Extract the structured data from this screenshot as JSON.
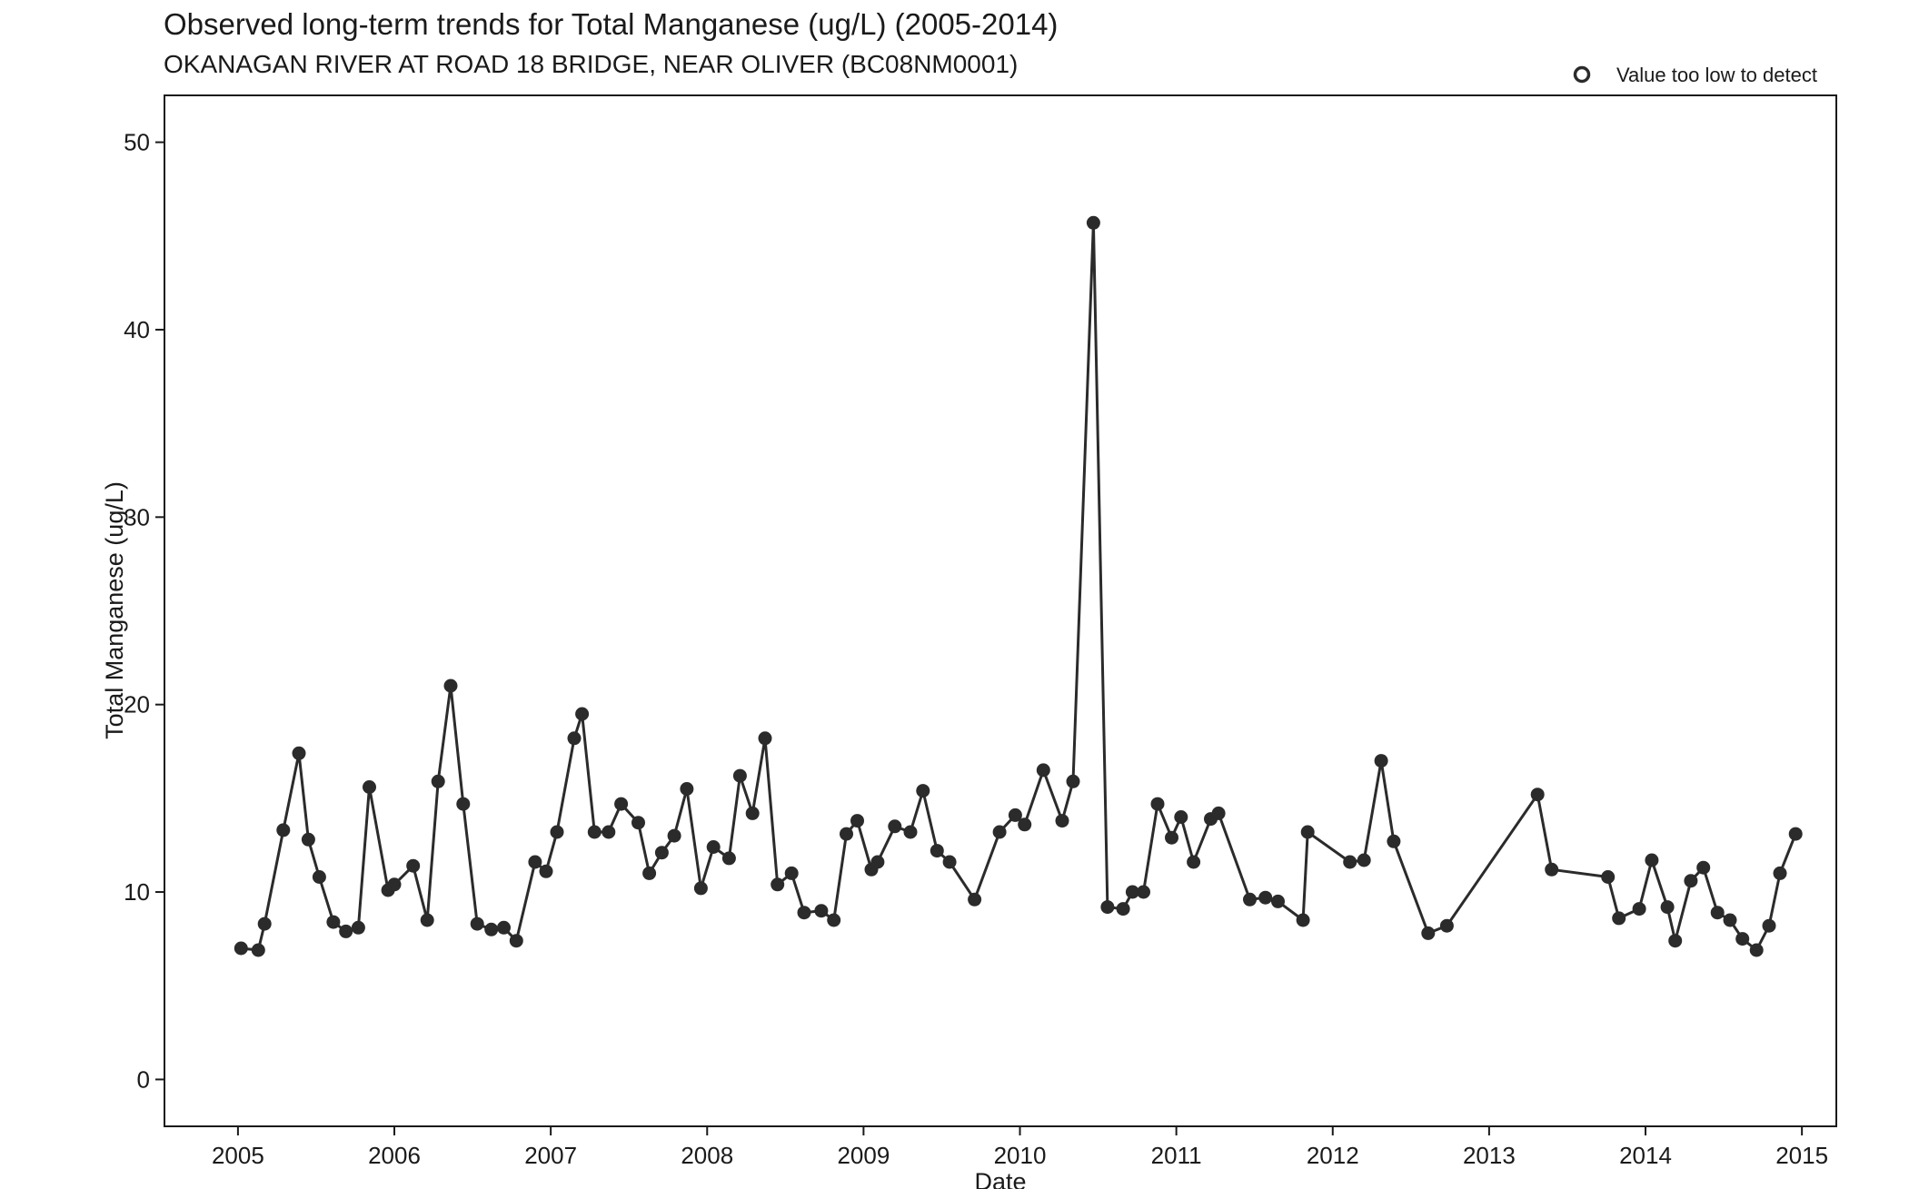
{
  "chart_data": {
    "type": "line",
    "title": "Observed long-term trends for Total Manganese (ug/L) (2005-2014)",
    "subtitle": "OKANAGAN RIVER AT ROAD 18 BRIDGE, NEAR OLIVER (BC08NM0001)",
    "xlabel": "Date",
    "ylabel": "Total Manganese (ug/L)",
    "xlim": [
      2004.53,
      2015.22
    ],
    "ylim": [
      -2.5,
      52.5
    ],
    "x_ticks": [
      2005,
      2006,
      2007,
      2008,
      2009,
      2010,
      2011,
      2012,
      2013,
      2014,
      2015
    ],
    "x_tick_labels": [
      "2005",
      "2006",
      "2007",
      "2008",
      "2009",
      "2010",
      "2011",
      "2012",
      "2013",
      "2014",
      "2015"
    ],
    "y_ticks": [
      0,
      10,
      20,
      30,
      40,
      50
    ],
    "y_tick_labels": [
      "0",
      "10",
      "20",
      "30",
      "40",
      "50"
    ],
    "grid": false,
    "legend": {
      "placement": "top-right",
      "entries": [
        {
          "label": "Value too low to detect",
          "marker": "open-circle"
        }
      ]
    },
    "colors": {
      "line": "#2b2b2b",
      "marker": "#2b2b2b",
      "axis": "#1a1a1a"
    },
    "series": [
      {
        "x": [
          2005.02,
          2005.13,
          2005.17,
          2005.29,
          2005.39,
          2005.45,
          2005.52,
          2005.61,
          2005.69,
          2005.77,
          2005.84,
          2005.96,
          2006.0,
          2006.12,
          2006.21,
          2006.28,
          2006.36,
          2006.44,
          2006.53,
          2006.62,
          2006.7,
          2006.78,
          2006.9,
          2006.97,
          2007.04,
          2007.15,
          2007.2,
          2007.28,
          2007.37,
          2007.45,
          2007.56,
          2007.63,
          2007.71,
          2007.79,
          2007.87,
          2007.96,
          2008.04,
          2008.14,
          2008.21,
          2008.29,
          2008.37,
          2008.45,
          2008.54,
          2008.62,
          2008.73,
          2008.81,
          2008.89,
          2008.96,
          2009.05,
          2009.09,
          2009.2,
          2009.3,
          2009.38,
          2009.47,
          2009.55,
          2009.71,
          2009.87,
          2009.97,
          2010.03,
          2010.15,
          2010.27,
          2010.34,
          2010.47,
          2010.56,
          2010.66,
          2010.72,
          2010.79,
          2010.88,
          2010.97,
          2011.03,
          2011.11,
          2011.22,
          2011.27,
          2011.47,
          2011.57,
          2011.65,
          2011.81,
          2011.84,
          2012.11,
          2012.2,
          2012.31,
          2012.39,
          2012.61,
          2012.73,
          2013.31,
          2013.4,
          2013.76,
          2013.83,
          2013.96,
          2014.04,
          2014.14,
          2014.19,
          2014.29,
          2014.37,
          2014.46,
          2014.54,
          2014.62,
          2014.71,
          2014.79,
          2014.86,
          2014.96
        ],
        "y": [
          7.0,
          6.9,
          8.3,
          13.3,
          17.4,
          12.8,
          10.8,
          8.4,
          7.9,
          8.1,
          15.6,
          10.1,
          10.4,
          11.4,
          8.5,
          15.9,
          21.0,
          14.7,
          8.3,
          8.0,
          8.1,
          7.4,
          11.6,
          11.1,
          13.2,
          18.2,
          19.5,
          13.2,
          13.2,
          14.7,
          13.7,
          11.0,
          12.1,
          13.0,
          15.5,
          10.2,
          12.4,
          11.8,
          16.2,
          14.2,
          18.2,
          10.4,
          11.0,
          8.9,
          9.0,
          8.5,
          13.1,
          13.8,
          11.2,
          11.6,
          13.5,
          13.2,
          15.4,
          12.2,
          11.6,
          9.6,
          13.2,
          14.1,
          13.6,
          16.5,
          13.8,
          15.9,
          45.7,
          9.2,
          9.1,
          10.0,
          10.0,
          14.7,
          12.9,
          14.0,
          11.6,
          13.9,
          14.2,
          9.6,
          9.7,
          9.5,
          8.5,
          13.2,
          11.6,
          11.7,
          17.0,
          12.7,
          7.8,
          8.2,
          15.2,
          11.2,
          10.8,
          8.6,
          9.1,
          11.7,
          9.2,
          7.4,
          10.6,
          11.3,
          8.9,
          8.5,
          7.5,
          6.9,
          8.2,
          11.0,
          13.1
        ]
      }
    ]
  }
}
